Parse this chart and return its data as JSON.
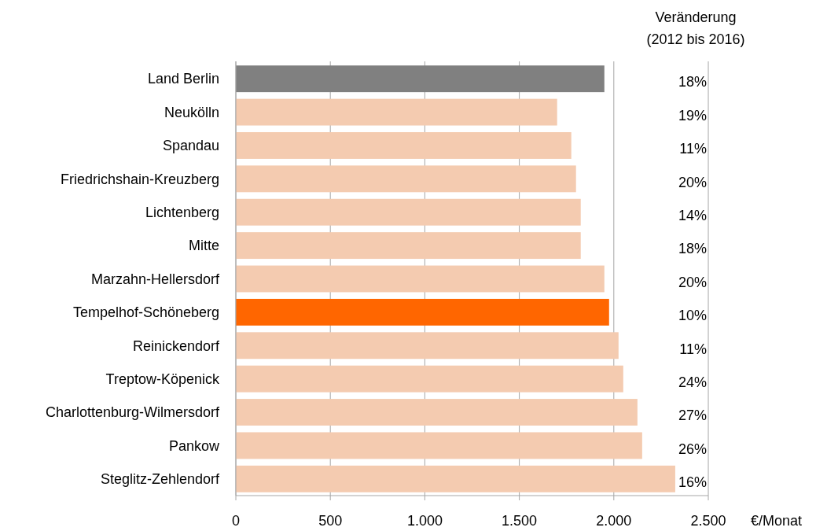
{
  "chart_data": {
    "type": "bar",
    "orientation": "horizontal",
    "categories": [
      "Land Berlin",
      "Neukölln",
      "Spandau",
      "Friedrichshain-Kreuzberg",
      "Lichtenberg",
      "Mitte",
      "Marzahn-Hellersdorf",
      "Tempelhof-Schöneberg",
      "Reinickendorf",
      "Treptow-Köpenick",
      "Charlottenburg-Wilmersdorf",
      "Pankow",
      "Steglitz-Zehlendorf"
    ],
    "values": [
      1950,
      1700,
      1775,
      1800,
      1825,
      1825,
      1950,
      1975,
      2025,
      2050,
      2125,
      2150,
      2325
    ],
    "colors": [
      "#808080",
      "#f4cbb0",
      "#f4cbb0",
      "#f4cbb0",
      "#f4cbb0",
      "#f4cbb0",
      "#f4cbb0",
      "#ff6600",
      "#f4cbb0",
      "#f4cbb0",
      "#f4cbb0",
      "#f4cbb0",
      "#f4cbb0"
    ],
    "xlim": [
      0,
      2500
    ],
    "xticks": [
      0,
      500,
      {
        "value": 1000,
        "label": "1.000"
      },
      {
        "value": 1500,
        "label": "1.500"
      },
      {
        "value": 2000,
        "label": "2.000"
      },
      {
        "value": 2500,
        "label": "2.500"
      }
    ],
    "xlabel": "€/Monat",
    "grid": "x",
    "annotations": [
      "Veränderung\n(2012 bis 2016)",
      "18%",
      "19%",
      "11%",
      "20%",
      "14%",
      "18%",
      "20%",
      "10%",
      "11%",
      "24%",
      "27%",
      "26%",
      "16%"
    ]
  }
}
